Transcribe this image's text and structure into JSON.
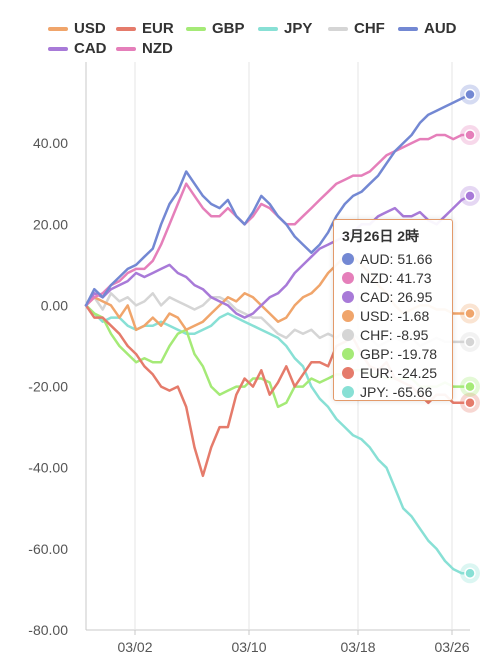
{
  "chart_data": {
    "type": "line",
    "x_ticks": [
      "03/02",
      "03/10",
      "03/18",
      "03/26"
    ],
    "y_ticks": [
      "40.00",
      "20.00",
      "0.00",
      "-20.00",
      "-40.00",
      "-60.00",
      "-80.00"
    ],
    "ylim": [
      -80,
      60
    ],
    "grid": "vertical lines",
    "legend_position": "top",
    "series": [
      {
        "name": "USD",
        "color": "#f0a56b",
        "values": [
          0,
          2,
          1,
          0,
          -3,
          0,
          -6,
          -5,
          -3,
          -5,
          -2,
          -3,
          -6,
          -5,
          -4,
          -2,
          0,
          2,
          1,
          3,
          2,
          0,
          -2,
          -4,
          -3,
          0,
          2,
          3,
          5,
          8,
          10,
          12,
          12,
          10,
          8,
          5,
          3,
          0,
          -2,
          -1,
          0,
          0,
          -1,
          -1,
          -2,
          -2,
          -2
        ]
      },
      {
        "name": "EUR",
        "color": "#e57b6b",
        "values": [
          0,
          -3,
          -3,
          -5,
          -7,
          -10,
          -12,
          -15,
          -17,
          -20,
          -21,
          -20,
          -25,
          -35,
          -42,
          -35,
          -30,
          -30,
          -22,
          -18,
          -20,
          -16,
          -22,
          -19,
          -15,
          -20,
          -17,
          -14,
          -14,
          -15,
          -10,
          -9,
          -8,
          -12,
          -15,
          -16,
          -14,
          -18,
          -19,
          -20,
          -22,
          -24,
          -22,
          -22,
          -24,
          -24,
          -24
        ]
      },
      {
        "name": "GBP",
        "color": "#a5ea77",
        "values": [
          0,
          -2,
          -3,
          -7,
          -10,
          -12,
          -14,
          -13,
          -14,
          -14,
          -10,
          -7,
          -6,
          -12,
          -15,
          -20,
          -22,
          -21,
          -20,
          -20,
          -18,
          -18,
          -19,
          -25,
          -24,
          -20,
          -20,
          -18,
          -19,
          -18,
          -17,
          -17,
          -16,
          -16,
          -17,
          -17,
          -18,
          -18,
          -18,
          -18,
          -20,
          -20,
          -20,
          -19,
          -20,
          -20,
          -20
        ]
      },
      {
        "name": "JPY",
        "color": "#88e0d5",
        "values": [
          0,
          -2,
          -4,
          -3,
          -3,
          -5,
          -6,
          -5,
          -5,
          -4,
          -5,
          -6,
          -7,
          -7,
          -6,
          -5,
          -3,
          -2,
          -3,
          -4,
          -5,
          -6,
          -7,
          -8,
          -10,
          -13,
          -15,
          -20,
          -23,
          -25,
          -28,
          -30,
          -32,
          -33,
          -35,
          -38,
          -40,
          -45,
          -50,
          -52,
          -55,
          -58,
          -60,
          -63,
          -65,
          -66,
          -66
        ]
      },
      {
        "name": "CHF",
        "color": "#d5d5d5",
        "values": [
          0,
          2,
          -1,
          3,
          1,
          2,
          0,
          1,
          3,
          0,
          2,
          1,
          0,
          -1,
          0,
          2,
          2,
          1,
          -1,
          -2,
          -3,
          -3,
          -5,
          -7,
          -8,
          -6,
          -7,
          -6,
          -8,
          -7,
          -8,
          -6,
          -7,
          -9,
          -8,
          -10,
          -9,
          -8,
          -9,
          -8,
          -10,
          -9,
          -8,
          -9,
          -9,
          -9,
          -9
        ]
      },
      {
        "name": "AUD",
        "color": "#7388d3",
        "values": [
          0,
          4,
          2,
          5,
          7,
          9,
          10,
          12,
          14,
          20,
          25,
          28,
          33,
          30,
          27,
          25,
          24,
          26,
          22,
          20,
          23,
          27,
          25,
          22,
          20,
          17,
          15,
          13,
          15,
          18,
          22,
          25,
          27,
          28,
          30,
          32,
          35,
          38,
          40,
          42,
          45,
          47,
          48,
          49,
          50,
          51,
          52
        ]
      },
      {
        "name": "CAD",
        "color": "#a87ad8",
        "values": [
          0,
          3,
          2,
          4,
          5,
          6,
          8,
          7,
          8,
          9,
          10,
          8,
          7,
          5,
          4,
          2,
          1,
          0,
          -2,
          -3,
          -2,
          0,
          2,
          3,
          5,
          8,
          10,
          12,
          14,
          15,
          16,
          17,
          18,
          20,
          20,
          22,
          23,
          24,
          22,
          22,
          23,
          21,
          20,
          22,
          24,
          26,
          27
        ]
      },
      {
        "name": "NZD",
        "color": "#e57fba",
        "values": [
          0,
          2,
          3,
          5,
          6,
          8,
          9,
          9,
          11,
          15,
          20,
          25,
          30,
          27,
          24,
          22,
          22,
          24,
          22,
          20,
          22,
          25,
          24,
          22,
          20,
          20,
          22,
          24,
          26,
          28,
          30,
          31,
          32,
          32,
          33,
          35,
          37,
          38,
          39,
          40,
          41,
          41,
          42,
          42,
          41,
          42,
          42
        ]
      }
    ]
  },
  "tooltip": {
    "title": "3月26日 2時",
    "rows": [
      {
        "color": "#7388d3",
        "text": "AUD: 51.66"
      },
      {
        "color": "#e57fba",
        "text": "NZD: 41.73"
      },
      {
        "color": "#a87ad8",
        "text": "CAD: 26.95"
      },
      {
        "color": "#f0a56b",
        "text": "USD: -1.68"
      },
      {
        "color": "#d5d5d5",
        "text": "CHF: -8.95"
      },
      {
        "color": "#a5ea77",
        "text": "GBP: -19.78"
      },
      {
        "color": "#e57b6b",
        "text": "EUR: -24.25"
      },
      {
        "color": "#88e0d5",
        "text": "JPY: -65.66"
      }
    ]
  }
}
